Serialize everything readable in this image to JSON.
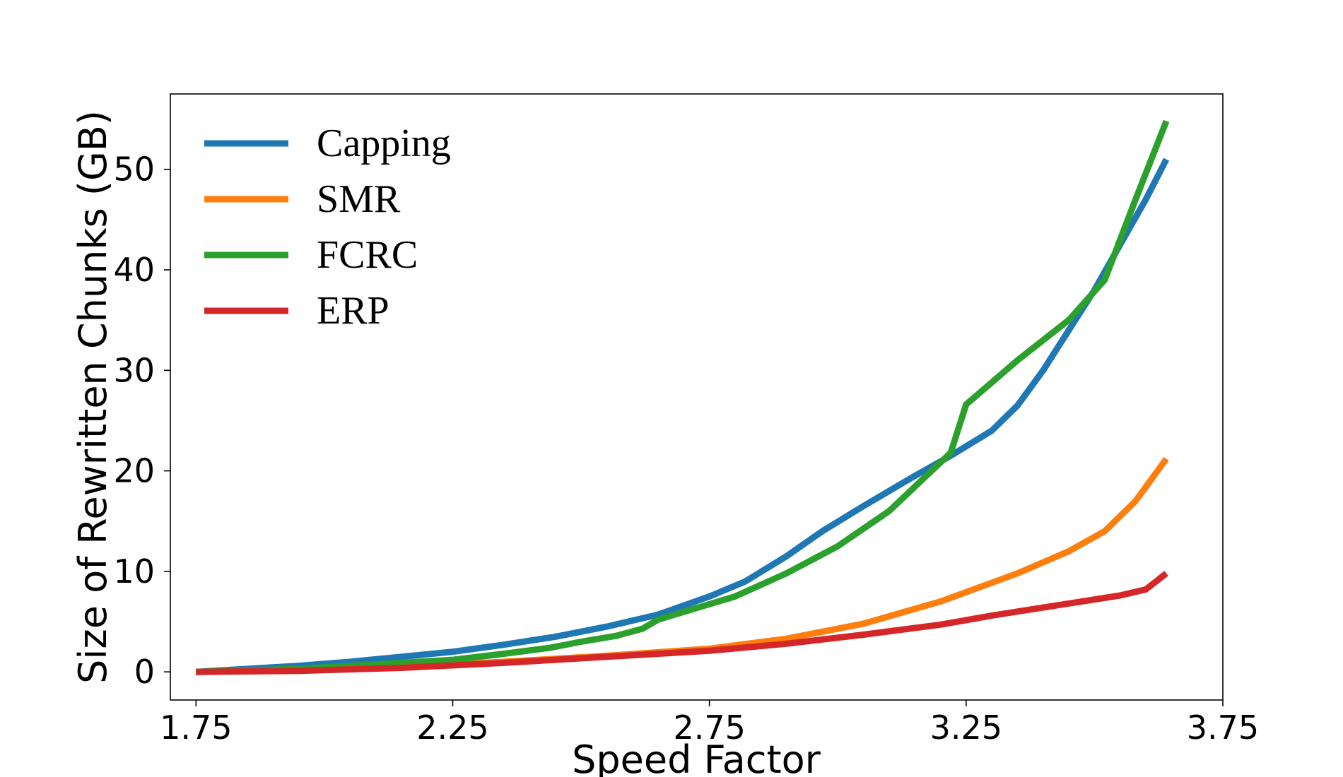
{
  "chart_data": {
    "type": "line",
    "xlabel": "Speed Factor",
    "ylabel": "Size of Rewritten Chunks (GB)",
    "xlim": [
      1.7,
      3.75
    ],
    "ylim": [
      -2.8,
      57.5
    ],
    "xticks": [
      1.75,
      2.25,
      2.75,
      3.25,
      3.75
    ],
    "xtick_labels": [
      "1.75",
      "2.25",
      "2.75",
      "3.25",
      "3.75"
    ],
    "yticks": [
      0,
      10,
      20,
      30,
      40,
      50
    ],
    "ytick_labels": [
      "0",
      "10",
      "20",
      "30",
      "40",
      "50"
    ],
    "grid": false,
    "legend_position": "upper-left",
    "series": [
      {
        "name": "Capping",
        "color": "#1f77b4",
        "x": [
          1.75,
          1.85,
          1.95,
          2.05,
          2.15,
          2.25,
          2.35,
          2.45,
          2.55,
          2.65,
          2.75,
          2.82,
          2.9,
          2.97,
          3.05,
          3.15,
          3.22,
          3.3,
          3.35,
          3.4,
          3.45,
          3.5,
          3.55,
          3.6,
          3.64
        ],
        "values": [
          0.0,
          0.3,
          0.6,
          1.0,
          1.5,
          2.0,
          2.7,
          3.5,
          4.5,
          5.7,
          7.5,
          9.0,
          11.5,
          14.0,
          16.5,
          19.5,
          21.5,
          24.0,
          26.5,
          30.0,
          34.0,
          38.0,
          42.5,
          47.0,
          51.0
        ]
      },
      {
        "name": "SMR",
        "color": "#ff7f0e",
        "x": [
          1.75,
          1.95,
          2.15,
          2.35,
          2.55,
          2.75,
          2.9,
          3.05,
          3.2,
          3.35,
          3.45,
          3.52,
          3.58,
          3.64
        ],
        "values": [
          0.0,
          0.2,
          0.5,
          1.0,
          1.6,
          2.3,
          3.3,
          4.8,
          7.0,
          9.8,
          12.0,
          14.0,
          17.0,
          21.2
        ]
      },
      {
        "name": "FCRC",
        "color": "#2ca02c",
        "x": [
          1.75,
          1.95,
          2.15,
          2.25,
          2.35,
          2.44,
          2.5,
          2.57,
          2.62,
          2.65,
          2.8,
          2.9,
          3.0,
          3.1,
          3.22,
          3.25,
          3.35,
          3.45,
          3.52,
          3.58,
          3.64
        ],
        "values": [
          0.0,
          0.3,
          0.9,
          1.2,
          1.8,
          2.4,
          3.0,
          3.6,
          4.3,
          5.2,
          7.5,
          9.8,
          12.5,
          16.0,
          21.8,
          26.6,
          31.0,
          35.0,
          39.0,
          47.0,
          54.8
        ]
      },
      {
        "name": "ERP",
        "color": "#d62728",
        "x": [
          1.75,
          1.95,
          2.15,
          2.35,
          2.55,
          2.75,
          2.9,
          3.05,
          3.2,
          3.3,
          3.4,
          3.5,
          3.55,
          3.6,
          3.64
        ],
        "values": [
          0.0,
          0.1,
          0.4,
          0.9,
          1.5,
          2.1,
          2.8,
          3.7,
          4.7,
          5.6,
          6.4,
          7.2,
          7.6,
          8.2,
          9.8
        ]
      }
    ]
  }
}
